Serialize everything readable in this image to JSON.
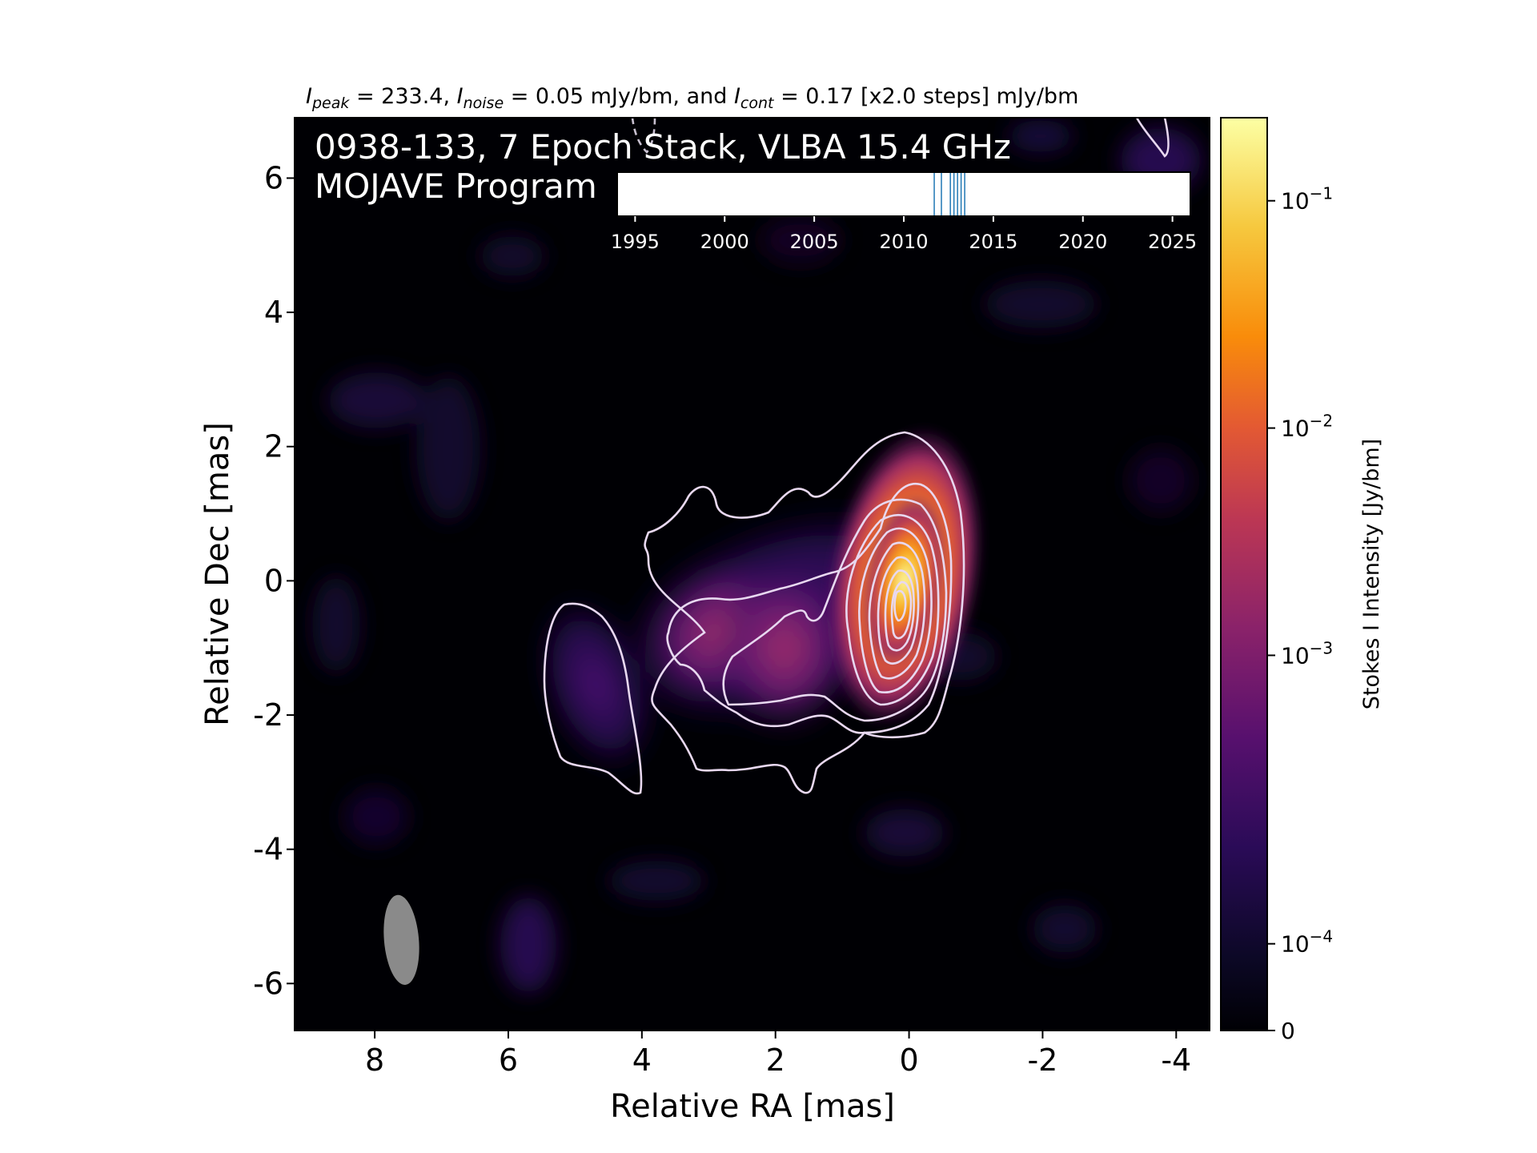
{
  "header": {
    "i_peak_sym": "I",
    "i_peak_sub": "peak",
    "i_peak_val": " = 233.4, ",
    "i_noise_sym": "I",
    "i_noise_sub": "noise",
    "i_noise_val": " = 0.05 mJy/bm, and ",
    "i_cont_sym": "I",
    "i_cont_sub": "cont",
    "i_cont_val": " = 0.17 [x2.0 steps] mJy/bm"
  },
  "overlay": {
    "line1": "0938-133, 7 Epoch Stack, VLBA 15.4 GHz",
    "line2": "MOJAVE Program"
  },
  "chart_data": {
    "type": "heatmap",
    "xlabel": "Relative RA [mas]",
    "ylabel": "Relative Dec [mas]",
    "xlim": [
      9.2,
      -4.5
    ],
    "ylim": [
      -6.7,
      6.9
    ],
    "xticks": [
      8,
      6,
      4,
      2,
      0,
      -2,
      -4
    ],
    "xtick_labels": [
      "8",
      "6",
      "4",
      "2",
      "0",
      "-2",
      "-4"
    ],
    "yticks": [
      6,
      4,
      2,
      0,
      -2,
      -4,
      -6
    ],
    "ytick_labels": [
      "6",
      "4",
      "2",
      "0",
      "-2",
      "-4",
      "-6"
    ],
    "colormap": "inferno",
    "colorbar": {
      "label": "Stokes I Intensity [Jy/bm]",
      "scale": "log",
      "ticks": [
        {
          "base": "10",
          "exp": "−1",
          "frac": 0.909
        },
        {
          "base": "10",
          "exp": "−2",
          "frac": 0.66
        },
        {
          "base": "10",
          "exp": "−3",
          "frac": 0.411
        },
        {
          "base": "10",
          "exp": "−4",
          "frac": 0.095
        },
        {
          "base": "",
          "exp": "",
          "label": "0",
          "frac": 0.0
        }
      ]
    },
    "beam": {
      "ra": 7.6,
      "dec": -5.35,
      "major_mas": 1.35,
      "minor_mas": 0.52,
      "pa_deg": -5,
      "color": "#8a8a8a"
    },
    "core": {
      "ra": 0.0,
      "dec": -0.1,
      "peak_jy_per_beam": 0.2334
    },
    "jet_components": [
      {
        "ra": 0.0,
        "dec": -0.1,
        "flux": 0.2334
      },
      {
        "ra": 1.8,
        "dec": -0.8,
        "flux": 0.0025
      },
      {
        "ra": 3.0,
        "dec": -0.6,
        "flux": 0.0008
      },
      {
        "ra": 4.7,
        "dec": -2.1,
        "flux": 0.0004
      }
    ],
    "contour_levels_mjy": [
      0.17,
      0.34,
      0.68,
      1.36,
      2.72,
      5.44,
      10.88,
      21.76,
      43.52,
      87.04,
      174.08
    ],
    "epoch_timeline": {
      "ticks": [
        1995,
        2000,
        2005,
        2010,
        2015,
        2020,
        2025
      ],
      "tick_labels": [
        "1995",
        "2000",
        "2005",
        "2010",
        "2015",
        "2020",
        "2025"
      ],
      "xlim": [
        1994.0,
        2026.0
      ],
      "epochs": [
        2011.7,
        2012.1,
        2012.6,
        2012.8,
        2013.0,
        2013.2,
        2013.4
      ],
      "epoch_color": "#1f77b4"
    }
  }
}
